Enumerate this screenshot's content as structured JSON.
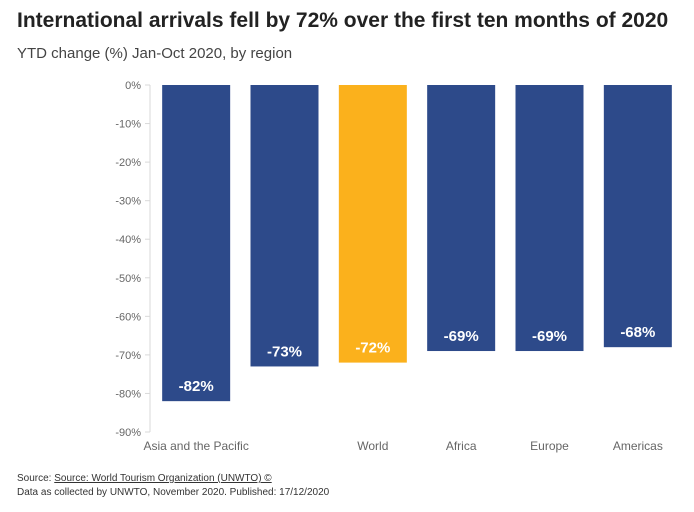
{
  "title": "International arrivals fell by 72% over the first ten months of 2020",
  "subtitle": "YTD change (%) Jan-Oct 2020, by region",
  "colors": {
    "bar": "#2d4a8a",
    "highlight": "#fbb11c",
    "axis": "#d9d9d9",
    "tick_text": "#666666",
    "label": "#ffffff"
  },
  "chart_data": {
    "type": "bar",
    "categories": [
      "Asia and the Pacific",
      "",
      "World",
      "Africa",
      "Europe",
      "Americas"
    ],
    "values": [
      -82,
      -73,
      -72,
      -69,
      -69,
      -68
    ],
    "data_labels": [
      "-82%",
      "-73%",
      "-72%",
      "-69%",
      "-69%",
      "-68%"
    ],
    "highlight_index": 2,
    "ylim": [
      -90,
      0
    ],
    "yticks": [
      0,
      -10,
      -20,
      -30,
      -40,
      -50,
      -60,
      -70,
      -80,
      -90
    ],
    "ytick_labels": [
      "0%",
      "-10%",
      "-20%",
      "-30%",
      "-40%",
      "-50%",
      "-60%",
      "-70%",
      "-80%",
      "-90%"
    ],
    "grid": false
  },
  "footer": {
    "source_prefix": "Source:",
    "source_link": "Source: World Tourism Organization (UNWTO) ©",
    "note": "Data as collected by UNWTO, November 2020. Published: 17/12/2020"
  }
}
